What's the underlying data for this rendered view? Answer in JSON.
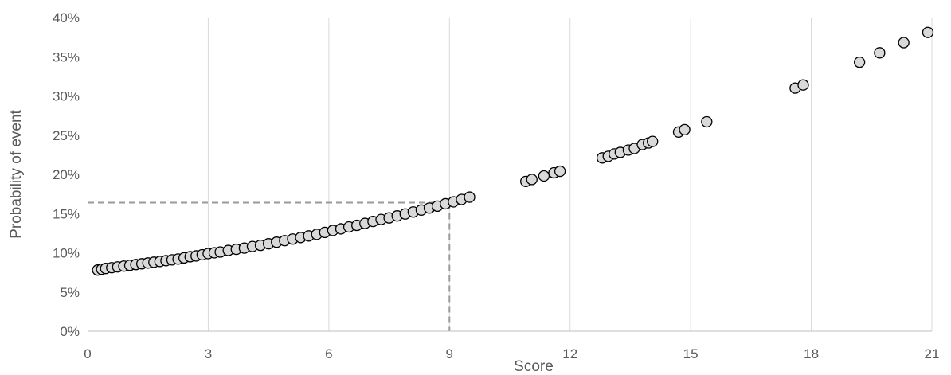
{
  "chart_data": {
    "type": "scatter",
    "xlabel": "Score",
    "ylabel": "Probability of event",
    "xlim": [
      0,
      21
    ],
    "ylim": [
      0,
      40
    ],
    "x_ticks": [
      0,
      3,
      6,
      9,
      12,
      15,
      18,
      21
    ],
    "y_ticks": [
      0,
      5,
      10,
      15,
      20,
      25,
      30,
      35,
      40
    ],
    "x_tick_labels": [
      "0",
      "3",
      "6",
      "9",
      "12",
      "15",
      "18",
      "21"
    ],
    "y_tick_labels": [
      "0%",
      "5%",
      "10%",
      "15%",
      "20%",
      "25%",
      "30%",
      "35%",
      "40%"
    ],
    "grid": "vertical",
    "reference_point": {
      "x": 9,
      "y": 16.4
    },
    "series": [
      {
        "marker_fill": "#d9d9d9",
        "marker_stroke": "#000000",
        "points": [
          [
            0.25,
            7.8
          ],
          [
            0.35,
            7.9
          ],
          [
            0.45,
            8.0
          ],
          [
            0.6,
            8.1
          ],
          [
            0.75,
            8.2
          ],
          [
            0.9,
            8.3
          ],
          [
            1.05,
            8.4
          ],
          [
            1.2,
            8.5
          ],
          [
            1.35,
            8.6
          ],
          [
            1.5,
            8.7
          ],
          [
            1.65,
            8.8
          ],
          [
            1.8,
            8.9
          ],
          [
            1.95,
            9.0
          ],
          [
            2.1,
            9.1
          ],
          [
            2.25,
            9.2
          ],
          [
            2.4,
            9.35
          ],
          [
            2.55,
            9.5
          ],
          [
            2.7,
            9.6
          ],
          [
            2.85,
            9.75
          ],
          [
            3.0,
            9.9
          ],
          [
            3.15,
            10.0
          ],
          [
            3.3,
            10.1
          ],
          [
            3.5,
            10.3
          ],
          [
            3.7,
            10.45
          ],
          [
            3.9,
            10.6
          ],
          [
            4.1,
            10.8
          ],
          [
            4.3,
            10.95
          ],
          [
            4.5,
            11.15
          ],
          [
            4.7,
            11.35
          ],
          [
            4.9,
            11.55
          ],
          [
            5.1,
            11.75
          ],
          [
            5.3,
            11.95
          ],
          [
            5.5,
            12.15
          ],
          [
            5.7,
            12.35
          ],
          [
            5.9,
            12.6
          ],
          [
            6.1,
            12.85
          ],
          [
            6.3,
            13.05
          ],
          [
            6.5,
            13.3
          ],
          [
            6.7,
            13.5
          ],
          [
            6.9,
            13.75
          ],
          [
            7.1,
            14.0
          ],
          [
            7.3,
            14.25
          ],
          [
            7.5,
            14.45
          ],
          [
            7.7,
            14.7
          ],
          [
            7.9,
            14.95
          ],
          [
            8.1,
            15.2
          ],
          [
            8.3,
            15.45
          ],
          [
            8.5,
            15.7
          ],
          [
            8.7,
            15.95
          ],
          [
            8.9,
            16.25
          ],
          [
            9.1,
            16.5
          ],
          [
            9.3,
            16.8
          ],
          [
            9.5,
            17.1
          ],
          [
            10.9,
            19.1
          ],
          [
            11.05,
            19.35
          ],
          [
            11.35,
            19.8
          ],
          [
            11.6,
            20.2
          ],
          [
            11.75,
            20.4
          ],
          [
            12.8,
            22.1
          ],
          [
            12.95,
            22.3
          ],
          [
            13.1,
            22.6
          ],
          [
            13.25,
            22.8
          ],
          [
            13.45,
            23.1
          ],
          [
            13.6,
            23.3
          ],
          [
            13.8,
            23.8
          ],
          [
            13.95,
            24.0
          ],
          [
            14.05,
            24.2
          ],
          [
            14.7,
            25.4
          ],
          [
            14.85,
            25.7
          ],
          [
            15.4,
            26.7
          ],
          [
            17.6,
            31.0
          ],
          [
            17.8,
            31.4
          ],
          [
            19.2,
            34.3
          ],
          [
            19.7,
            35.5
          ],
          [
            20.3,
            36.8
          ],
          [
            20.9,
            38.1
          ]
        ]
      }
    ]
  }
}
